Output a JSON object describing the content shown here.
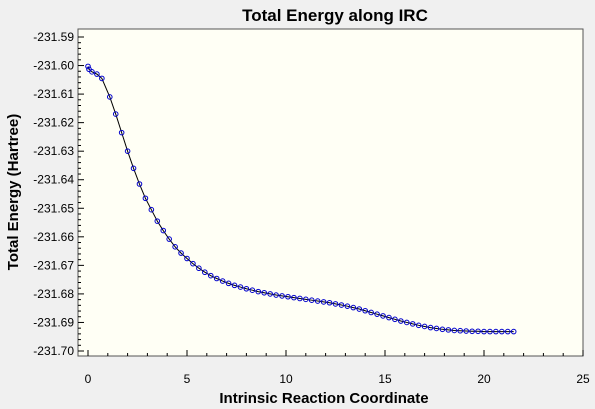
{
  "colors": {
    "window_background": "#f0f0f0",
    "plot_background": "#fffff5",
    "series_color": "#0000cc",
    "line_color": "#000000"
  },
  "chart_data": {
    "type": "line",
    "title": "Total Energy along IRC",
    "xlabel": "Intrinsic Reaction Coordinate",
    "ylabel": "Total Energy (Hartree)",
    "xlim": [
      0,
      25
    ],
    "ylim": [
      -231.7,
      -231.59
    ],
    "xticks": [
      "0",
      "5",
      "10",
      "15",
      "20",
      "25"
    ],
    "yticks": [
      "-231.59",
      "-231.60",
      "-231.61",
      "-231.62",
      "-231.63",
      "-231.64",
      "-231.65",
      "-231.66",
      "-231.67",
      "-231.68",
      "-231.69",
      "-231.70"
    ],
    "grid": false,
    "marker": "open-circle",
    "series": [
      {
        "x": [
          0.0,
          0.05,
          0.2,
          0.45,
          0.7,
          1.1,
          1.4,
          1.7,
          2.0,
          2.3,
          2.6,
          2.9,
          3.2,
          3.5,
          3.8,
          4.1,
          4.4,
          4.7,
          5.0,
          5.3,
          5.6,
          5.9,
          6.2,
          6.5,
          6.8,
          7.1,
          7.4,
          7.7,
          8.0,
          8.3,
          8.6,
          8.9,
          9.2,
          9.5,
          9.8,
          10.1,
          10.4,
          10.7,
          11.0,
          11.3,
          11.6,
          11.9,
          12.2,
          12.5,
          12.8,
          13.1,
          13.4,
          13.7,
          14.0,
          14.3,
          14.6,
          14.9,
          15.2,
          15.5,
          15.8,
          16.1,
          16.4,
          16.7,
          17.0,
          17.3,
          17.6,
          17.9,
          18.2,
          18.5,
          18.8,
          19.1,
          19.4,
          19.7,
          20.0,
          20.3,
          20.6,
          20.9,
          21.2,
          21.5
        ],
        "y": [
          -231.6003,
          -231.6013,
          -231.6022,
          -231.603,
          -231.6045,
          -231.611,
          -231.617,
          -231.6235,
          -231.63,
          -231.636,
          -231.6415,
          -231.6465,
          -231.6505,
          -231.6545,
          -231.6578,
          -231.6608,
          -231.6635,
          -231.6657,
          -231.6676,
          -231.6694,
          -231.671,
          -231.6724,
          -231.6736,
          -231.6746,
          -231.6755,
          -231.6763,
          -231.677,
          -231.6776,
          -231.6782,
          -231.6787,
          -231.6792,
          -231.6796,
          -231.68,
          -231.6804,
          -231.6807,
          -231.681,
          -231.6813,
          -231.6816,
          -231.6819,
          -231.6822,
          -231.6825,
          -231.6828,
          -231.6831,
          -231.6835,
          -231.6839,
          -231.6843,
          -231.6848,
          -231.6853,
          -231.6859,
          -231.6865,
          -231.6871,
          -231.6877,
          -231.6883,
          -231.6889,
          -231.6895,
          -231.69,
          -231.6905,
          -231.691,
          -231.6914,
          -231.6918,
          -231.6921,
          -231.6924,
          -231.6926,
          -231.6928,
          -231.6929,
          -231.693,
          -231.6931,
          -231.6931,
          -231.6932,
          -231.6932,
          -231.6932,
          -231.6932,
          -231.6932,
          -231.6932
        ]
      }
    ]
  }
}
